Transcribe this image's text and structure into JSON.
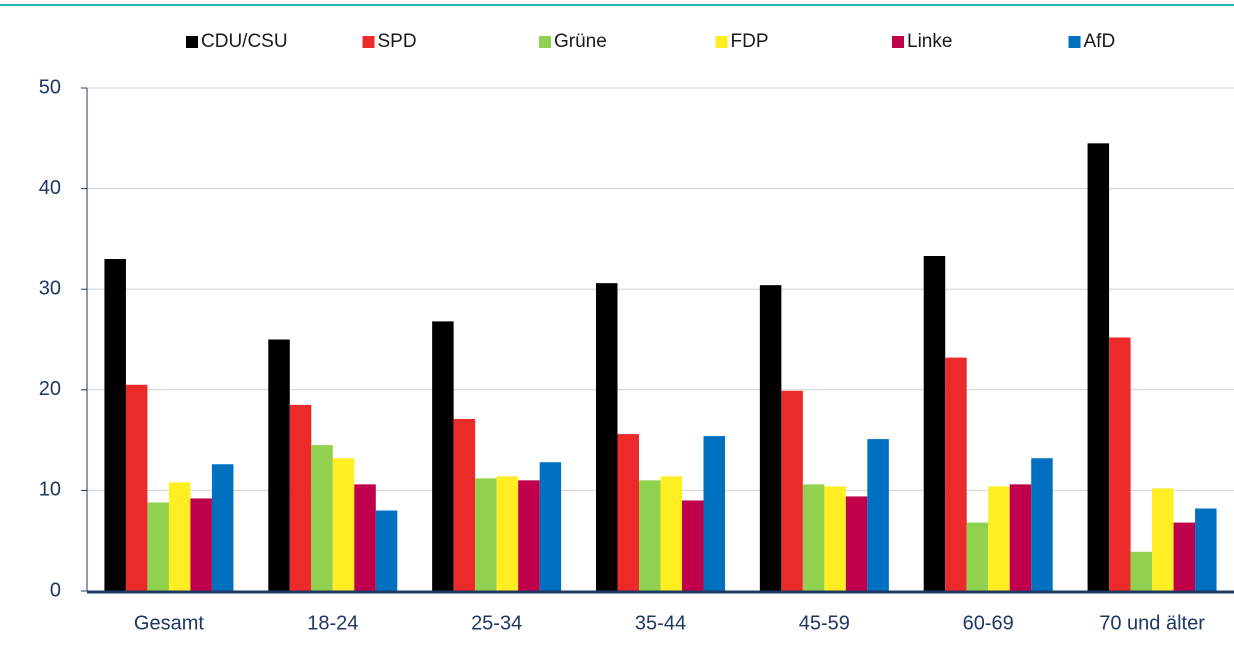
{
  "chart_data": {
    "type": "bar",
    "categories": [
      "Gesamt",
      "18-24",
      "25-34",
      "35-44",
      "45-59",
      "60-69",
      "70 und älter"
    ],
    "series": [
      {
        "name": "CDU/CSU",
        "color": "#000000",
        "values": [
          33,
          25,
          26.8,
          30.6,
          30.4,
          33.3,
          44.5
        ]
      },
      {
        "name": "SPD",
        "color": "#ec2a2a",
        "values": [
          20.5,
          18.5,
          17.1,
          15.6,
          19.9,
          23.2,
          25.2
        ]
      },
      {
        "name": "Grüne",
        "color": "#92d050",
        "values": [
          8.8,
          14.5,
          11.2,
          11,
          10.6,
          6.8,
          3.9
        ]
      },
      {
        "name": "FDP",
        "color": "#ffee22",
        "values": [
          10.8,
          13.2,
          11.4,
          11.4,
          10.4,
          10.4,
          10.2
        ]
      },
      {
        "name": "Linke",
        "color": "#c0004b",
        "values": [
          9.2,
          10.6,
          11,
          9,
          9.4,
          10.6,
          6.8
        ]
      },
      {
        "name": "AfD",
        "color": "#0070c0",
        "values": [
          12.6,
          8,
          12.8,
          15.4,
          15.1,
          13.2,
          8.2
        ]
      }
    ],
    "ylim": [
      0,
      50
    ],
    "yticks": [
      0,
      10,
      20,
      30,
      40,
      50
    ],
    "grid": true,
    "legend": "top"
  }
}
